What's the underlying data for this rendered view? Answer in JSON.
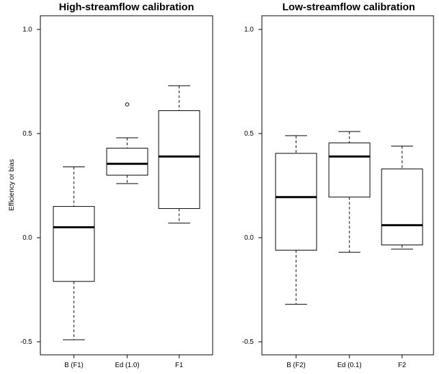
{
  "chart_data": [
    {
      "type": "boxplot",
      "title": "High-streamflow calibration",
      "ylabel": "Efficiency or bias",
      "ylim": [
        -0.5,
        1.0
      ],
      "yticks": [
        "-0.5",
        "0.0",
        "0.5",
        "1.0"
      ],
      "yticks_values": [
        -0.5,
        0.0,
        0.5,
        1.0
      ],
      "categories": [
        "B (F1)",
        "Ed (1.0)",
        "F1"
      ],
      "boxes": [
        {
          "name": "B (F1)",
          "whisker_low": -0.49,
          "q1": -0.21,
          "median": 0.05,
          "q3": 0.15,
          "whisker_high": 0.34,
          "outliers": []
        },
        {
          "name": "Ed (1.0)",
          "whisker_low": 0.26,
          "q1": 0.3,
          "median": 0.355,
          "q3": 0.43,
          "whisker_high": 0.48,
          "outliers": [
            0.64
          ]
        },
        {
          "name": "F1",
          "whisker_low": 0.07,
          "q1": 0.14,
          "median": 0.39,
          "q3": 0.61,
          "whisker_high": 0.73,
          "outliers": []
        }
      ]
    },
    {
      "type": "boxplot",
      "title": "Low-streamflow calibration",
      "ylabel": "",
      "ylim": [
        -0.5,
        1.0
      ],
      "yticks": [
        "-0.5",
        "0.0",
        "0.5",
        "1.0"
      ],
      "yticks_values": [
        -0.5,
        0.0,
        0.5,
        1.0
      ],
      "categories": [
        "B (F2)",
        "Ed (0.1)",
        "F2"
      ],
      "boxes": [
        {
          "name": "B (F2)",
          "whisker_low": -0.32,
          "q1": -0.06,
          "median": 0.195,
          "q3": 0.405,
          "whisker_high": 0.49,
          "outliers": []
        },
        {
          "name": "Ed (0.1)",
          "whisker_low": -0.07,
          "q1": 0.195,
          "median": 0.39,
          "q3": 0.455,
          "whisker_high": 0.51,
          "outliers": []
        },
        {
          "name": "F2",
          "whisker_low": -0.055,
          "q1": -0.035,
          "median": 0.06,
          "q3": 0.33,
          "whisker_high": 0.44,
          "outliers": []
        }
      ]
    }
  ]
}
